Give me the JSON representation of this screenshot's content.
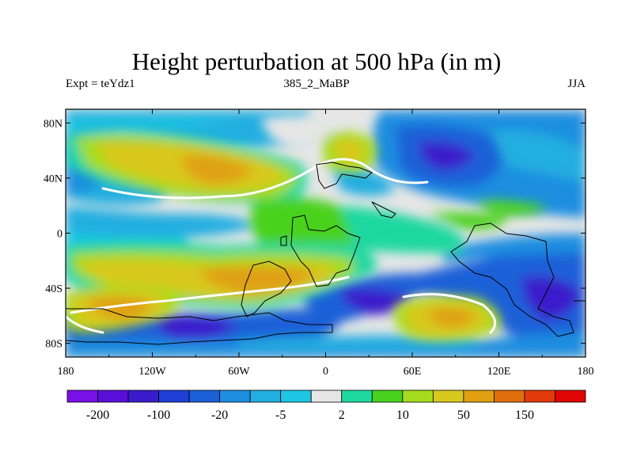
{
  "title": "Height perturbation at 500 hPa (in m)",
  "left_string": "Expt = teYdz1",
  "center_string": "385_2_MaBP",
  "right_string": "JJA",
  "axes": {
    "x_ticks": [
      "180",
      "120W",
      "60W",
      "0",
      "60E",
      "120E",
      "180"
    ],
    "y_ticks": [
      "80N",
      "40N",
      "0",
      "40S",
      "80S"
    ]
  },
  "colorbar": {
    "colors": [
      "#7a10e8",
      "#5a0fd8",
      "#3a1bcc",
      "#1f3fd6",
      "#1c60d8",
      "#1e8ee0",
      "#22aee0",
      "#1ec6e4",
      "#e6e6e6",
      "#1fd8a0",
      "#48d21e",
      "#a6dc1e",
      "#d8c81e",
      "#e0a012",
      "#e06e0c",
      "#e23a0a",
      "#e00606"
    ],
    "labels": [
      "-200",
      "-100",
      "-20",
      "-5",
      "2",
      "10",
      "50",
      "150"
    ]
  },
  "chart_data": {
    "type": "heatmap",
    "title": "Height perturbation at 500 hPa (in m)",
    "projection": "cylindrical equidistant",
    "xlim": [
      -180,
      180
    ],
    "ylim": [
      -90,
      90
    ],
    "season": "JJA",
    "experiment": "teYdz1",
    "case": "385_2_MaBP",
    "features": [
      {
        "lon": -75,
        "lat": 48,
        "value": 50
      },
      {
        "lon": 20,
        "lat": 52,
        "value": 50
      },
      {
        "lon": 90,
        "lat": 50,
        "value": -100
      },
      {
        "lon": -110,
        "lat": -40,
        "value": 50
      },
      {
        "lon": -135,
        "lat": -65,
        "value": 50
      },
      {
        "lon": 100,
        "lat": -70,
        "value": 50
      },
      {
        "lon": 40,
        "lat": -55,
        "value": -100
      },
      {
        "lon": 155,
        "lat": -55,
        "value": -100
      },
      {
        "lon": -90,
        "lat": -75,
        "value": -20
      }
    ]
  }
}
